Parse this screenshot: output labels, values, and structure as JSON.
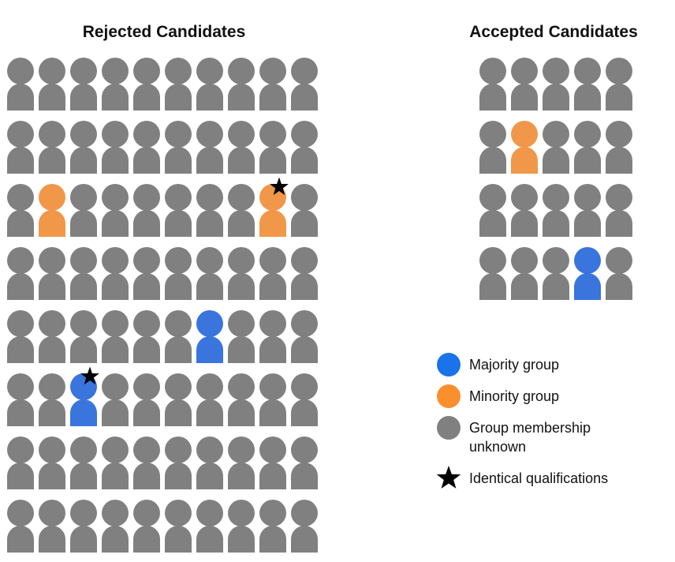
{
  "colors": {
    "majority": "#3a74dd",
    "minority": "#f0974a",
    "unknown": "#808080",
    "star": "#000000",
    "legend_majority": "#1a73e8",
    "legend_minority": "#fa8f2e"
  },
  "rejected": {
    "title": "Rejected Candidates",
    "rows": [
      [
        "g",
        "g",
        "g",
        "g",
        "g",
        "g",
        "g",
        "g",
        "g",
        "g"
      ],
      [
        "g",
        "g",
        "g",
        "g",
        "g",
        "g",
        "g",
        "g",
        "g",
        "g"
      ],
      [
        "g",
        "o",
        "g",
        "g",
        "g",
        "g",
        "g",
        "g",
        "o*",
        "g"
      ],
      [
        "g",
        "g",
        "g",
        "g",
        "g",
        "g",
        "g",
        "g",
        "g",
        "g"
      ],
      [
        "g",
        "g",
        "g",
        "g",
        "g",
        "g",
        "b",
        "g",
        "g",
        "g"
      ],
      [
        "g",
        "g",
        "b*",
        "g",
        "g",
        "g",
        "g",
        "g",
        "g",
        "g"
      ],
      [
        "g",
        "g",
        "g",
        "g",
        "g",
        "g",
        "g",
        "g",
        "g",
        "g"
      ],
      [
        "g",
        "g",
        "g",
        "g",
        "g",
        "g",
        "g",
        "g",
        "g",
        "g"
      ]
    ]
  },
  "accepted": {
    "title": "Accepted Candidates",
    "rows": [
      [
        "g",
        "g",
        "g",
        "g",
        "g"
      ],
      [
        "g",
        "o",
        "g",
        "g",
        "g"
      ],
      [
        "g",
        "g",
        "g",
        "g",
        "g"
      ],
      [
        "g",
        "g",
        "g",
        "b",
        "g"
      ]
    ]
  },
  "legend": {
    "majority": "Majority group",
    "minority": "Minority group",
    "unknown_line1": "Group membership",
    "unknown_line2": "unknown",
    "star": "Identical qualifications"
  }
}
